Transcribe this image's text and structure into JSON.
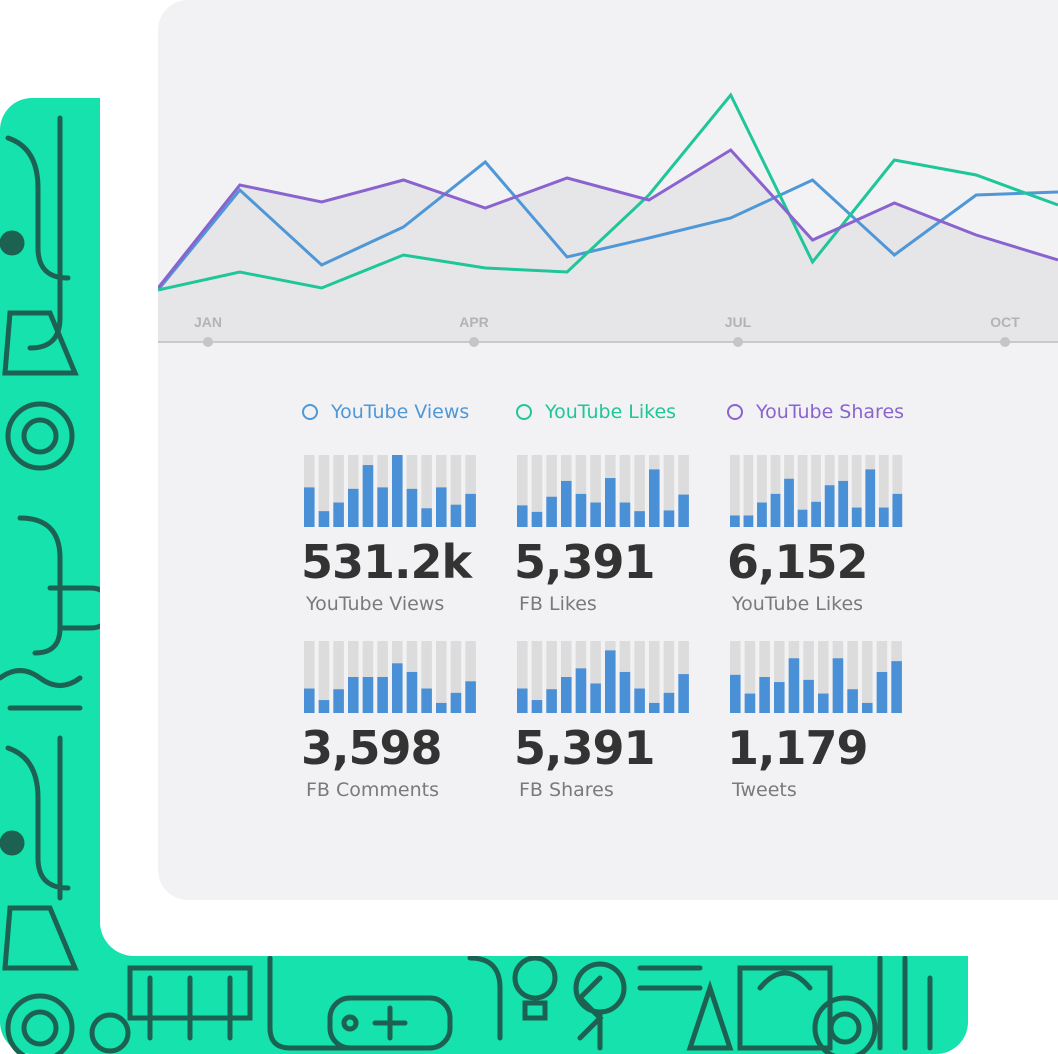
{
  "colors": {
    "views": "#4f97d6",
    "likes": "#1fc699",
    "shares": "#8a63cf",
    "bar_fill": "#4a90d6",
    "bar_track": "#dcdcdc",
    "pattern_bg": "#15e2ad",
    "pattern_line": "#1c6152"
  },
  "chart_data": [
    {
      "type": "line",
      "x_ticks": [
        "JAN",
        "APR",
        "JUL",
        "OCT"
      ],
      "series": [
        {
          "name": "YouTube Views",
          "color": "#4f97d6",
          "values": [
            0,
            100,
            25,
            63,
            128,
            33,
            52,
            72,
            110,
            35,
            95,
            98
          ]
        },
        {
          "name": "YouTube Likes",
          "color": "#1fc699",
          "values": [
            0,
            18,
            2,
            35,
            22,
            18,
            95,
            195,
            28,
            130,
            115,
            85
          ]
        },
        {
          "name": "YouTube Shares",
          "color": "#8a63cf",
          "values": [
            2,
            105,
            88,
            110,
            82,
            112,
            90,
            140,
            50,
            87,
            55,
            30
          ]
        }
      ],
      "area_series": "YouTube Shares"
    },
    {
      "type": "bar",
      "values": [
        0.55,
        0.22,
        0.34,
        0.53,
        0.86,
        0.55,
        1.0,
        0.53,
        0.26,
        0.55,
        0.31,
        0.46
      ]
    },
    {
      "type": "bar",
      "values": [
        0.3,
        0.21,
        0.42,
        0.64,
        0.46,
        0.34,
        0.68,
        0.34,
        0.22,
        0.8,
        0.23,
        0.45
      ]
    },
    {
      "type": "bar",
      "values": [
        0.16,
        0.16,
        0.34,
        0.46,
        0.67,
        0.24,
        0.35,
        0.58,
        0.64,
        0.27,
        0.8,
        0.27,
        0.46
      ]
    },
    {
      "type": "bar",
      "values": [
        0.34,
        0.18,
        0.33,
        0.5,
        0.5,
        0.5,
        0.69,
        0.57,
        0.34,
        0.14,
        0.28,
        0.44
      ]
    },
    {
      "type": "bar",
      "values": [
        0.34,
        0.18,
        0.33,
        0.5,
        0.62,
        0.41,
        0.87,
        0.57,
        0.34,
        0.14,
        0.28,
        0.54
      ]
    },
    {
      "type": "bar",
      "values": [
        0.53,
        0.27,
        0.5,
        0.43,
        0.76,
        0.46,
        0.27,
        0.76,
        0.33,
        0.14,
        0.57,
        0.72
      ]
    }
  ],
  "legend": [
    {
      "label": "YouTube Views"
    },
    {
      "label": "YouTube Likes"
    },
    {
      "label": "YouTube Shares"
    }
  ],
  "stats": [
    {
      "value": "531.2k",
      "label": "YouTube Views"
    },
    {
      "value": "5,391",
      "label": "FB Likes"
    },
    {
      "value": "6,152",
      "label": "YouTube Likes"
    },
    {
      "value": "3,598",
      "label": "FB Comments"
    },
    {
      "value": "5,391",
      "label": "FB Shares"
    },
    {
      "value": "1,179",
      "label": "Tweets"
    }
  ]
}
